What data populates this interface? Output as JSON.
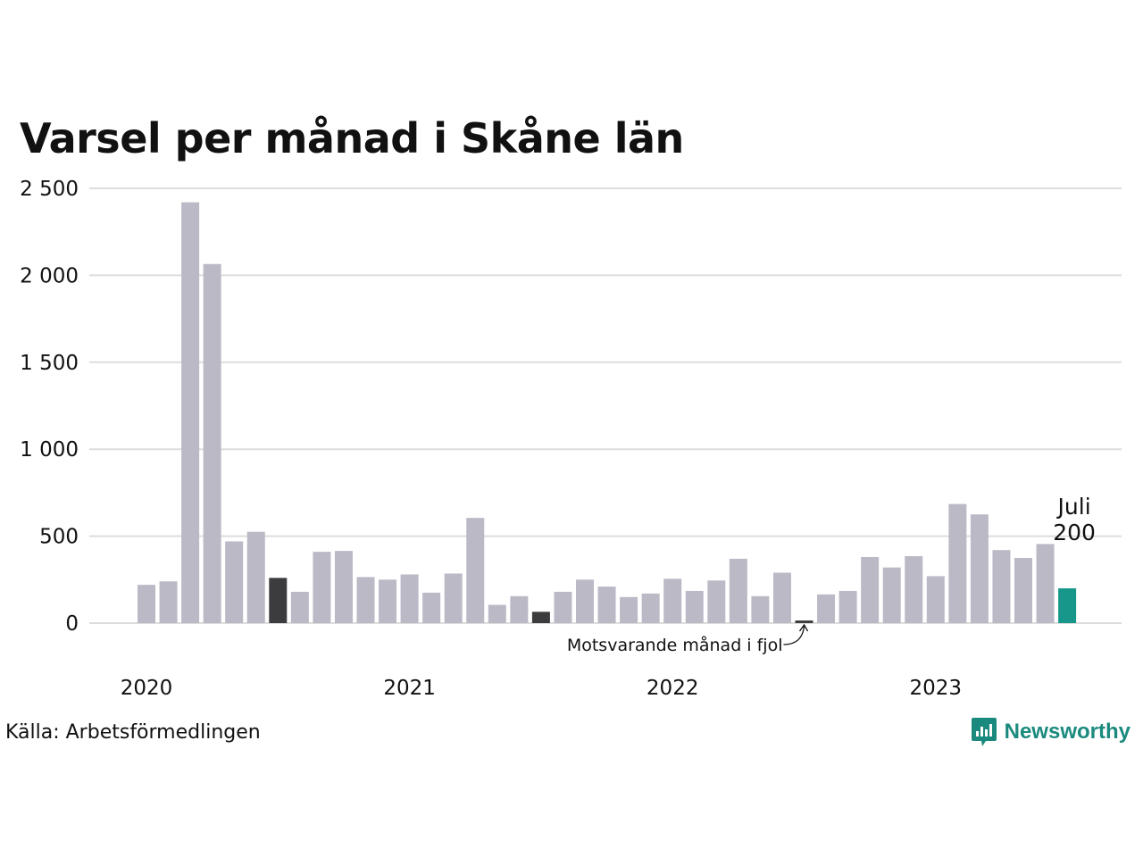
{
  "title": "Varsel per månad i Skåne län",
  "source": "Källa: Arbetsförmedlingen",
  "brand": "Newsworthy",
  "colors": {
    "default": "#bbb9c6",
    "highlight": "#3c3c3e",
    "current": "#17968a",
    "grid": "#dddddd",
    "brand": "#1b8a7e"
  },
  "annotations": {
    "current_month": "Juli",
    "current_value": "200",
    "last_year": "Motsvarande månad i fjol"
  },
  "chart_data": {
    "type": "bar",
    "title": "Varsel per månad i Skåne län",
    "x_tick_labels": [
      "2020",
      "2021",
      "2022",
      "2023"
    ],
    "y_tick_labels": [
      "0",
      "500",
      "1 000",
      "1 500",
      "2 000",
      "2 500"
    ],
    "ylim": [
      0,
      2500
    ],
    "grid": true,
    "categories": [
      "2020-01",
      "2020-02",
      "2020-03",
      "2020-04",
      "2020-05",
      "2020-06",
      "2020-07",
      "2020-08",
      "2020-09",
      "2020-10",
      "2020-11",
      "2020-12",
      "2021-01",
      "2021-02",
      "2021-03",
      "2021-04",
      "2021-05",
      "2021-06",
      "2021-07",
      "2021-08",
      "2021-09",
      "2021-10",
      "2021-11",
      "2021-12",
      "2022-01",
      "2022-02",
      "2022-03",
      "2022-04",
      "2022-05",
      "2022-06",
      "2022-07",
      "2022-08",
      "2022-09",
      "2022-10",
      "2022-11",
      "2022-12",
      "2023-01",
      "2023-02",
      "2023-03",
      "2023-04",
      "2023-05",
      "2023-06",
      "2023-07"
    ],
    "values": [
      220,
      240,
      2420,
      2065,
      470,
      525,
      260,
      180,
      410,
      415,
      265,
      250,
      280,
      175,
      285,
      605,
      105,
      155,
      65,
      180,
      250,
      210,
      150,
      170,
      255,
      185,
      245,
      370,
      155,
      290,
      15,
      165,
      185,
      380,
      320,
      385,
      270,
      685,
      625,
      420,
      375,
      455,
      200
    ],
    "highlight_indices": [
      6,
      18,
      30
    ],
    "current_index": 42
  }
}
